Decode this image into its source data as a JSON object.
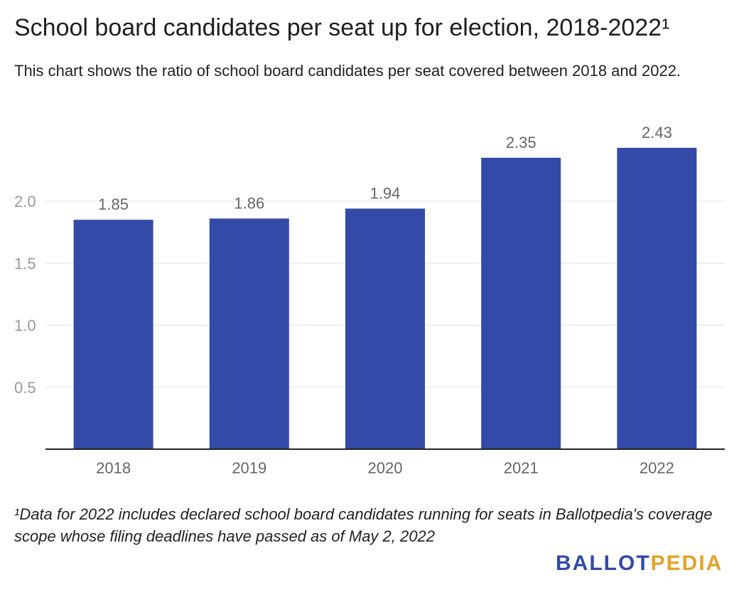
{
  "chart_data": {
    "type": "bar",
    "title": "School board candidates per seat up for election, 2018-2022¹",
    "subtitle": "This chart shows the ratio of school board candidates per seat covered between 2018 and 2022.",
    "categories": [
      "2018",
      "2019",
      "2020",
      "2021",
      "2022"
    ],
    "values": [
      1.85,
      1.86,
      1.94,
      2.35,
      2.43
    ],
    "value_labels": [
      "1.85",
      "1.86",
      "1.94",
      "2.35",
      "2.43"
    ],
    "yticks": [
      "0.5",
      "1.0",
      "1.5",
      "2.0"
    ],
    "ytick_values": [
      0.5,
      1.0,
      1.5,
      2.0
    ],
    "ylim": [
      0,
      2.43
    ],
    "xlabel": "",
    "ylabel": "",
    "grid": true,
    "colors": {
      "bar": "#334aa8",
      "grid": "#e0e0e0",
      "axis": "#222222",
      "tick_text": "#999999",
      "label_text": "#666666"
    }
  },
  "footnote": "¹Data for 2022 includes declared school board candidates running for seats in Ballotpedia's coverage scope whose filing deadlines have passed as of May 2, 2022",
  "logo": {
    "part1": "BALLOT",
    "part2": "PEDIA"
  }
}
